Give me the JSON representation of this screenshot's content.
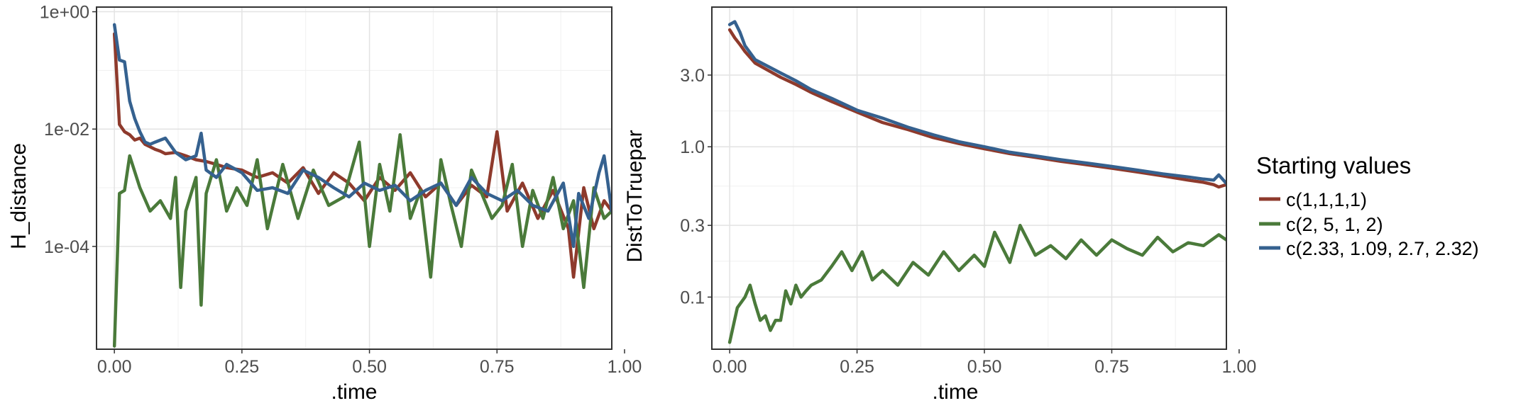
{
  "chart_data": [
    {
      "type": "line",
      "ylabel": "H_distance",
      "xlabel": ".time",
      "yscale": "log10",
      "xlim": [
        -0.035,
        0.975
      ],
      "ylim": [
        1.77e-06,
        1.2
      ],
      "xticks": [
        0,
        0.25,
        0.5,
        0.75,
        1.0
      ],
      "xtick_labels": [
        "0.00",
        "0.25",
        "0.50",
        "0.75",
        "1.00"
      ],
      "yticks": [
        0.0001,
        0.01,
        1
      ],
      "ytick_labels": [
        "1e-04",
        "1e-02",
        "1e+00"
      ],
      "grid": true,
      "series": [
        {
          "name": "c(1,1,1,1)",
          "color": "#8E3A2C",
          "x": [
            0.0,
            0.01,
            0.02,
            0.03,
            0.04,
            0.05,
            0.06,
            0.07,
            0.08,
            0.09,
            0.1,
            0.12,
            0.14,
            0.16,
            0.18,
            0.2,
            0.22,
            0.25,
            0.28,
            0.31,
            0.34,
            0.37,
            0.4,
            0.43,
            0.46,
            0.49,
            0.52,
            0.55,
            0.58,
            0.61,
            0.64,
            0.67,
            0.7,
            0.73,
            0.75,
            0.77,
            0.8,
            0.83,
            0.86,
            0.89,
            0.9,
            0.92,
            0.94,
            0.96,
            0.975
          ],
          "y": [
            0.42,
            0.012,
            0.009,
            0.008,
            0.0065,
            0.007,
            0.0055,
            0.005,
            0.0045,
            0.0042,
            0.0038,
            0.004,
            0.0035,
            0.003,
            0.0028,
            0.0025,
            0.0022,
            0.002,
            0.0015,
            0.0018,
            0.0012,
            0.0022,
            0.0008,
            0.0018,
            0.0012,
            0.0006,
            0.0015,
            0.0009,
            0.0018,
            0.0007,
            0.0012,
            0.0005,
            0.0011,
            0.0007,
            0.009,
            0.0004,
            0.0012,
            0.0003,
            0.0009,
            0.0002,
            3e-05,
            0.001,
            0.0002,
            0.0006,
            0.0004
          ]
        },
        {
          "name": "c(2, 5, 1, 2)",
          "color": "#4A7A3A",
          "x": [
            0.0,
            0.01,
            0.02,
            0.03,
            0.05,
            0.07,
            0.09,
            0.11,
            0.12,
            0.13,
            0.14,
            0.16,
            0.17,
            0.18,
            0.2,
            0.22,
            0.24,
            0.26,
            0.28,
            0.3,
            0.33,
            0.36,
            0.39,
            0.42,
            0.45,
            0.48,
            0.5,
            0.52,
            0.54,
            0.56,
            0.58,
            0.6,
            0.62,
            0.64,
            0.66,
            0.68,
            0.7,
            0.72,
            0.74,
            0.76,
            0.78,
            0.8,
            0.82,
            0.84,
            0.86,
            0.88,
            0.9,
            0.92,
            0.94,
            0.96,
            0.975
          ],
          "y": [
            2e-06,
            0.0008,
            0.0009,
            0.0035,
            0.001,
            0.0004,
            0.0006,
            0.0003,
            0.0015,
            2e-05,
            0.0004,
            0.0015,
            1e-05,
            0.0008,
            0.003,
            0.0004,
            0.001,
            0.0005,
            0.003,
            0.0002,
            0.0025,
            0.0003,
            0.002,
            0.0005,
            0.0007,
            0.006,
            0.0001,
            0.0025,
            0.0004,
            0.008,
            0.0003,
            0.0009,
            3e-05,
            0.003,
            0.0005,
            0.0001,
            0.002,
            0.0008,
            0.0003,
            0.0005,
            0.0025,
            0.0001,
            0.0009,
            0.0003,
            0.0015,
            0.0002,
            0.0006,
            2e-05,
            0.001,
            0.0003,
            0.0004
          ]
        },
        {
          "name": "c(2.33, 1.09, 2.7, 2.32)",
          "color": "#35618F",
          "x": [
            0.0,
            0.01,
            0.02,
            0.03,
            0.04,
            0.05,
            0.06,
            0.07,
            0.08,
            0.1,
            0.12,
            0.14,
            0.16,
            0.17,
            0.18,
            0.2,
            0.22,
            0.25,
            0.28,
            0.31,
            0.34,
            0.37,
            0.4,
            0.43,
            0.46,
            0.49,
            0.52,
            0.55,
            0.58,
            0.61,
            0.64,
            0.67,
            0.7,
            0.73,
            0.76,
            0.79,
            0.82,
            0.85,
            0.88,
            0.9,
            0.91,
            0.93,
            0.95,
            0.96,
            0.975
          ],
          "y": [
            0.6,
            0.15,
            0.14,
            0.03,
            0.015,
            0.009,
            0.006,
            0.0055,
            0.006,
            0.007,
            0.004,
            0.003,
            0.0035,
            0.0085,
            0.002,
            0.0015,
            0.0025,
            0.0018,
            0.0009,
            0.001,
            0.0008,
            0.002,
            0.0015,
            0.001,
            0.0007,
            0.0012,
            0.0009,
            0.0011,
            0.0006,
            0.0009,
            0.0012,
            0.0005,
            0.0015,
            0.0008,
            0.0006,
            0.0009,
            0.0005,
            0.0004,
            0.0012,
            0.0001,
            0.0008,
            0.0003,
            0.0018,
            0.0035,
            0.0004
          ]
        }
      ]
    },
    {
      "type": "line",
      "ylabel": "DistToTruepar",
      "xlabel": ".time",
      "yscale": "log10",
      "xlim": [
        -0.035,
        0.975
      ],
      "ylim": [
        0.045,
        8.5
      ],
      "xticks": [
        0,
        0.25,
        0.5,
        0.75,
        1.0
      ],
      "xtick_labels": [
        "0.00",
        "0.25",
        "0.50",
        "0.75",
        "1.00"
      ],
      "yticks": [
        0.1,
        0.3,
        1.0,
        3.0
      ],
      "ytick_labels": [
        "0.1",
        "0.3",
        "1.0",
        "3.0"
      ],
      "grid": true,
      "series": [
        {
          "name": "c(1,1,1,1)",
          "color": "#8E3A2C",
          "x": [
            0.0,
            0.01,
            0.02,
            0.03,
            0.05,
            0.07,
            0.1,
            0.13,
            0.16,
            0.2,
            0.25,
            0.3,
            0.35,
            0.4,
            0.45,
            0.5,
            0.55,
            0.6,
            0.65,
            0.7,
            0.75,
            0.8,
            0.85,
            0.9,
            0.93,
            0.95,
            0.96,
            0.975
          ],
          "y": [
            6.0,
            5.3,
            4.8,
            4.3,
            3.6,
            3.3,
            2.9,
            2.6,
            2.3,
            2.0,
            1.7,
            1.45,
            1.3,
            1.15,
            1.05,
            0.97,
            0.9,
            0.85,
            0.8,
            0.76,
            0.72,
            0.68,
            0.64,
            0.6,
            0.58,
            0.56,
            0.54,
            0.56
          ]
        },
        {
          "name": "c(2, 5, 1, 2)",
          "color": "#4A7A3A",
          "x": [
            0.0,
            0.015,
            0.03,
            0.04,
            0.05,
            0.06,
            0.07,
            0.08,
            0.09,
            0.1,
            0.11,
            0.12,
            0.13,
            0.14,
            0.15,
            0.16,
            0.18,
            0.2,
            0.22,
            0.24,
            0.26,
            0.28,
            0.3,
            0.33,
            0.36,
            0.39,
            0.42,
            0.45,
            0.48,
            0.5,
            0.52,
            0.55,
            0.57,
            0.6,
            0.63,
            0.66,
            0.69,
            0.72,
            0.75,
            0.78,
            0.81,
            0.84,
            0.87,
            0.9,
            0.93,
            0.96,
            0.975
          ],
          "y": [
            0.05,
            0.085,
            0.1,
            0.12,
            0.09,
            0.07,
            0.075,
            0.06,
            0.07,
            0.07,
            0.11,
            0.09,
            0.12,
            0.1,
            0.11,
            0.12,
            0.13,
            0.16,
            0.2,
            0.15,
            0.2,
            0.13,
            0.15,
            0.12,
            0.17,
            0.14,
            0.2,
            0.15,
            0.19,
            0.16,
            0.27,
            0.17,
            0.3,
            0.19,
            0.22,
            0.18,
            0.24,
            0.19,
            0.24,
            0.21,
            0.19,
            0.25,
            0.2,
            0.23,
            0.22,
            0.26,
            0.24
          ]
        },
        {
          "name": "c(2.33, 1.09, 2.7, 2.32)",
          "color": "#35618F",
          "x": [
            0.0,
            0.01,
            0.02,
            0.03,
            0.05,
            0.07,
            0.1,
            0.13,
            0.16,
            0.2,
            0.25,
            0.3,
            0.35,
            0.4,
            0.45,
            0.5,
            0.55,
            0.6,
            0.65,
            0.7,
            0.75,
            0.8,
            0.85,
            0.9,
            0.93,
            0.95,
            0.96,
            0.975
          ],
          "y": [
            6.5,
            6.8,
            5.8,
            4.7,
            3.8,
            3.5,
            3.1,
            2.75,
            2.4,
            2.1,
            1.75,
            1.55,
            1.35,
            1.2,
            1.08,
            1.0,
            0.92,
            0.87,
            0.82,
            0.78,
            0.74,
            0.7,
            0.66,
            0.63,
            0.61,
            0.6,
            0.65,
            0.57
          ]
        }
      ]
    }
  ],
  "legend": {
    "title": "Starting values",
    "items": [
      {
        "label": "c(1,1,1,1)",
        "color": "#8E3A2C"
      },
      {
        "label": "c(2, 5, 1, 2)",
        "color": "#4A7A3A"
      },
      {
        "label": "c(2.33, 1.09, 2.7, 2.32)",
        "color": "#35618F"
      }
    ]
  }
}
